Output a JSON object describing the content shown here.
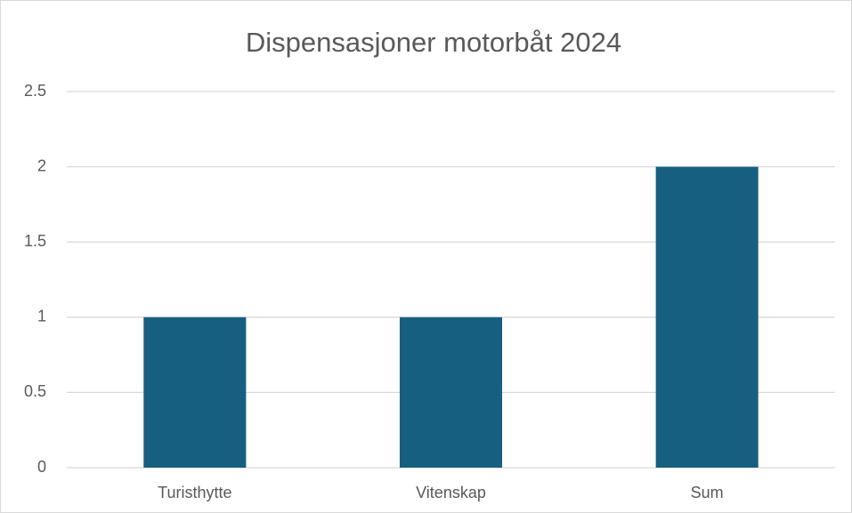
{
  "chart_data": {
    "type": "bar",
    "title": "Dispensasjoner motorbåt 2024",
    "categories": [
      "Turisthytte",
      "Vitenskap",
      "Sum"
    ],
    "values": [
      1,
      1,
      2
    ],
    "color": "#175f81",
    "ylim": [
      0,
      2.5
    ],
    "yticks": [
      0,
      0.5,
      1,
      1.5,
      2,
      2.5
    ],
    "grid": true
  }
}
